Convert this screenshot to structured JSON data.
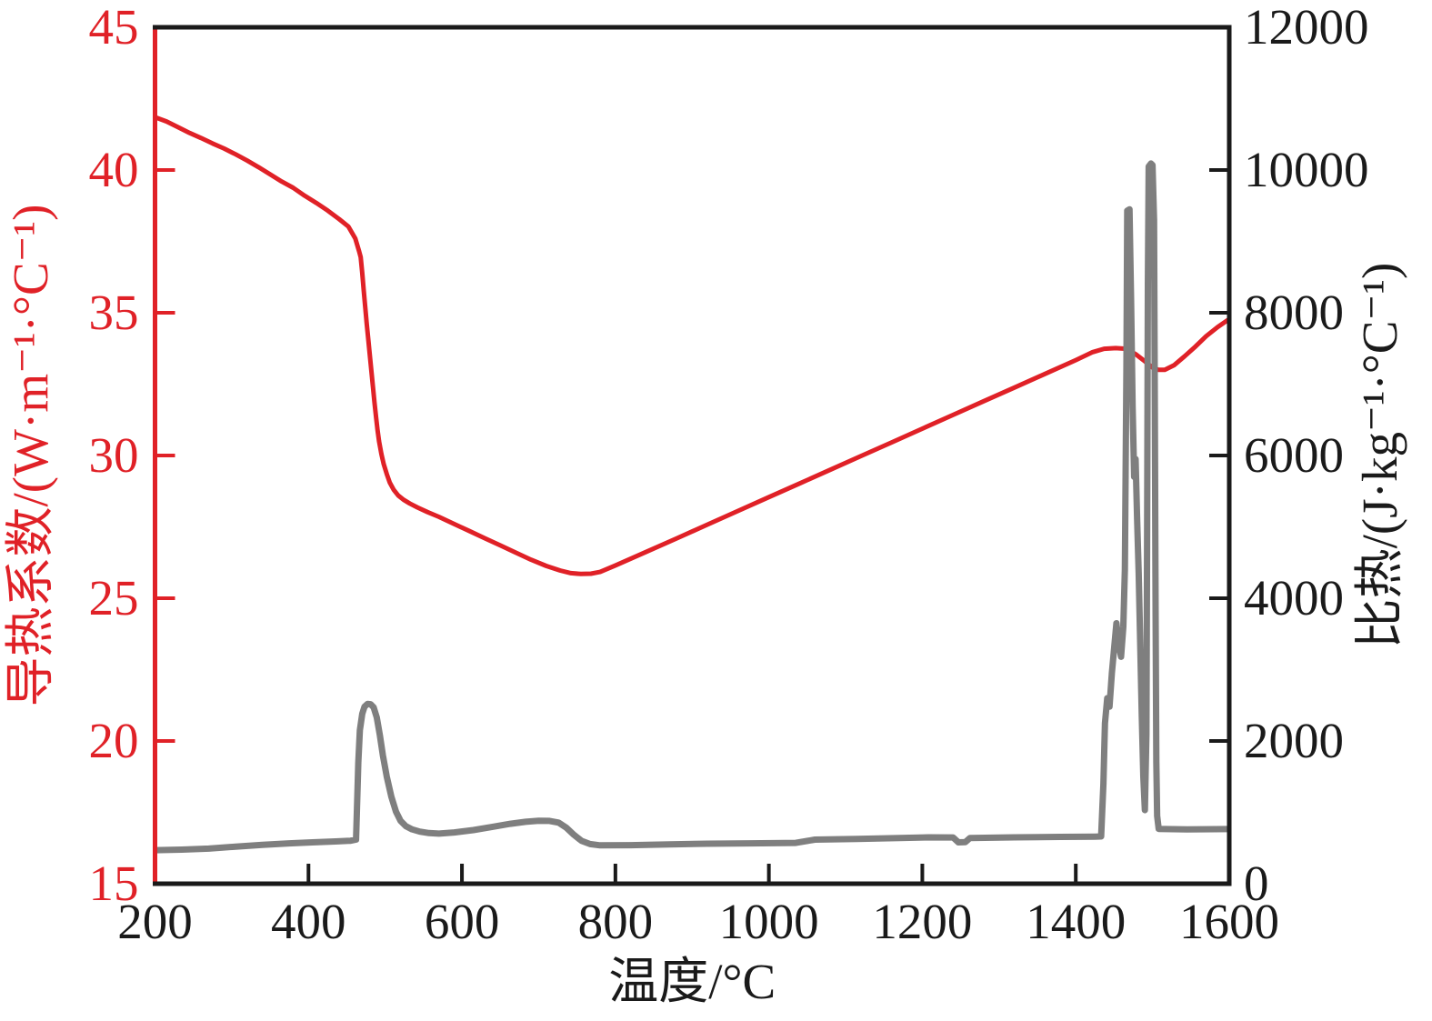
{
  "figure": {
    "background": "#ffffff",
    "description_visible_text_only": true
  },
  "chart_data": {
    "type": "line",
    "title": "",
    "grid": false,
    "legend": "none",
    "x_axis": {
      "label": "温度/°C",
      "range": [
        200,
        1600
      ],
      "ticks": [
        200,
        400,
        600,
        800,
        1000,
        1200,
        1400,
        1600
      ],
      "color": "#1a1a1a"
    },
    "left_axis": {
      "label": "导热系数/(W·m⁻¹·°C⁻¹)",
      "range": [
        15,
        45
      ],
      "ticks": [
        15,
        20,
        25,
        30,
        35,
        40,
        45
      ],
      "color": "#e02127"
    },
    "right_axis": {
      "label": "比热/(J·kg⁻¹·°C⁻¹)",
      "range": [
        0,
        12000
      ],
      "ticks": [
        0,
        2000,
        4000,
        6000,
        8000,
        10000,
        12000
      ],
      "color": "#1a1a1a"
    },
    "series": [
      {
        "name": "导热系数",
        "axis": "left",
        "color": "#e02127",
        "width": 5,
        "points": [
          [
            200,
            41.85
          ],
          [
            215,
            41.7
          ],
          [
            230,
            41.5
          ],
          [
            245,
            41.3
          ],
          [
            260,
            41.12
          ],
          [
            275,
            40.93
          ],
          [
            290,
            40.75
          ],
          [
            305,
            40.55
          ],
          [
            320,
            40.33
          ],
          [
            335,
            40.1
          ],
          [
            350,
            39.85
          ],
          [
            365,
            39.6
          ],
          [
            380,
            39.38
          ],
          [
            395,
            39.1
          ],
          [
            410,
            38.85
          ],
          [
            425,
            38.58
          ],
          [
            440,
            38.28
          ],
          [
            452,
            38.02
          ],
          [
            461,
            37.6
          ],
          [
            466,
            37.15
          ],
          [
            468,
            36.95
          ],
          [
            470,
            36.4
          ],
          [
            472,
            35.8
          ],
          [
            474,
            35.2
          ],
          [
            476,
            34.6
          ],
          [
            478,
            34.05
          ],
          [
            480,
            33.5
          ],
          [
            482,
            32.95
          ],
          [
            484,
            32.4
          ],
          [
            486,
            31.85
          ],
          [
            488,
            31.35
          ],
          [
            490,
            30.9
          ],
          [
            492,
            30.5
          ],
          [
            495,
            30.05
          ],
          [
            498,
            29.7
          ],
          [
            502,
            29.35
          ],
          [
            506,
            29.05
          ],
          [
            511,
            28.8
          ],
          [
            517,
            28.6
          ],
          [
            524,
            28.45
          ],
          [
            532,
            28.32
          ],
          [
            542,
            28.18
          ],
          [
            555,
            28.02
          ],
          [
            570,
            27.85
          ],
          [
            590,
            27.6
          ],
          [
            610,
            27.35
          ],
          [
            630,
            27.1
          ],
          [
            650,
            26.85
          ],
          [
            670,
            26.6
          ],
          [
            690,
            26.35
          ],
          [
            710,
            26.13
          ],
          [
            728,
            25.97
          ],
          [
            742,
            25.88
          ],
          [
            755,
            25.85
          ],
          [
            768,
            25.86
          ],
          [
            780,
            25.92
          ],
          [
            800,
            26.15
          ],
          [
            840,
            26.62
          ],
          [
            880,
            27.1
          ],
          [
            920,
            27.58
          ],
          [
            960,
            28.06
          ],
          [
            1000,
            28.54
          ],
          [
            1040,
            29.02
          ],
          [
            1080,
            29.5
          ],
          [
            1120,
            29.98
          ],
          [
            1160,
            30.46
          ],
          [
            1200,
            30.94
          ],
          [
            1240,
            31.42
          ],
          [
            1280,
            31.9
          ],
          [
            1320,
            32.38
          ],
          [
            1360,
            32.86
          ],
          [
            1400,
            33.34
          ],
          [
            1422,
            33.62
          ],
          [
            1437,
            33.74
          ],
          [
            1452,
            33.76
          ],
          [
            1466,
            33.74
          ],
          [
            1478,
            33.55
          ],
          [
            1490,
            33.3
          ],
          [
            1500,
            33.08
          ],
          [
            1508,
            33.0
          ],
          [
            1516,
            33.0
          ],
          [
            1528,
            33.16
          ],
          [
            1542,
            33.48
          ],
          [
            1556,
            33.82
          ],
          [
            1570,
            34.18
          ],
          [
            1585,
            34.5
          ],
          [
            1600,
            34.78
          ]
        ]
      },
      {
        "name": "比热",
        "axis": "right",
        "color": "#7f7f7f",
        "width": 7,
        "points": [
          [
            200,
            470
          ],
          [
            235,
            478
          ],
          [
            270,
            492
          ],
          [
            305,
            520
          ],
          [
            340,
            545
          ],
          [
            375,
            565
          ],
          [
            405,
            580
          ],
          [
            435,
            592
          ],
          [
            455,
            602
          ],
          [
            462,
            618
          ],
          [
            463,
            1000
          ],
          [
            465,
            1700
          ],
          [
            467,
            2150
          ],
          [
            470,
            2380
          ],
          [
            473,
            2480
          ],
          [
            477,
            2520
          ],
          [
            481,
            2515
          ],
          [
            485,
            2470
          ],
          [
            489,
            2330
          ],
          [
            493,
            2080
          ],
          [
            497,
            1800
          ],
          [
            502,
            1500
          ],
          [
            508,
            1220
          ],
          [
            514,
            1010
          ],
          [
            520,
            880
          ],
          [
            527,
            805
          ],
          [
            535,
            762
          ],
          [
            545,
            730
          ],
          [
            557,
            710
          ],
          [
            570,
            702
          ],
          [
            590,
            718
          ],
          [
            615,
            752
          ],
          [
            640,
            798
          ],
          [
            663,
            840
          ],
          [
            683,
            868
          ],
          [
            700,
            882
          ],
          [
            714,
            880
          ],
          [
            726,
            856
          ],
          [
            736,
            786
          ],
          [
            746,
            684
          ],
          [
            756,
            600
          ],
          [
            767,
            556
          ],
          [
            780,
            538
          ],
          [
            820,
            540
          ],
          [
            870,
            550
          ],
          [
            920,
            560
          ],
          [
            975,
            565
          ],
          [
            1035,
            572
          ],
          [
            1060,
            618
          ],
          [
            1115,
            628
          ],
          [
            1170,
            640
          ],
          [
            1208,
            650
          ],
          [
            1240,
            648
          ],
          [
            1247,
            580
          ],
          [
            1256,
            582
          ],
          [
            1262,
            640
          ],
          [
            1320,
            650
          ],
          [
            1380,
            656
          ],
          [
            1425,
            660
          ],
          [
            1433,
            663
          ],
          [
            1434,
            900
          ],
          [
            1436,
            1400
          ],
          [
            1438,
            2250
          ],
          [
            1441,
            2600
          ],
          [
            1444,
            2480
          ],
          [
            1447,
            2950
          ],
          [
            1450,
            3300
          ],
          [
            1453,
            3650
          ],
          [
            1456,
            3350
          ],
          [
            1459,
            3180
          ],
          [
            1462,
            3600
          ],
          [
            1464,
            4400
          ],
          [
            1466,
            7200
          ],
          [
            1467,
            9430
          ],
          [
            1470,
            9450
          ],
          [
            1472,
            8200
          ],
          [
            1474,
            6700
          ],
          [
            1476,
            5700
          ],
          [
            1478,
            5950
          ],
          [
            1480,
            5100
          ],
          [
            1482,
            4350
          ],
          [
            1484,
            3350
          ],
          [
            1486,
            2350
          ],
          [
            1488,
            1500
          ],
          [
            1490,
            1030
          ],
          [
            1492,
            2100
          ],
          [
            1493,
            5000
          ],
          [
            1494,
            8400
          ],
          [
            1495,
            10050
          ],
          [
            1498,
            10090
          ],
          [
            1500,
            10070
          ],
          [
            1502,
            9300
          ],
          [
            1503,
            6800
          ],
          [
            1504,
            3800
          ],
          [
            1505,
            1700
          ],
          [
            1506,
            950
          ],
          [
            1508,
            768
          ],
          [
            1545,
            762
          ],
          [
            1600,
            766
          ]
        ]
      }
    ]
  }
}
